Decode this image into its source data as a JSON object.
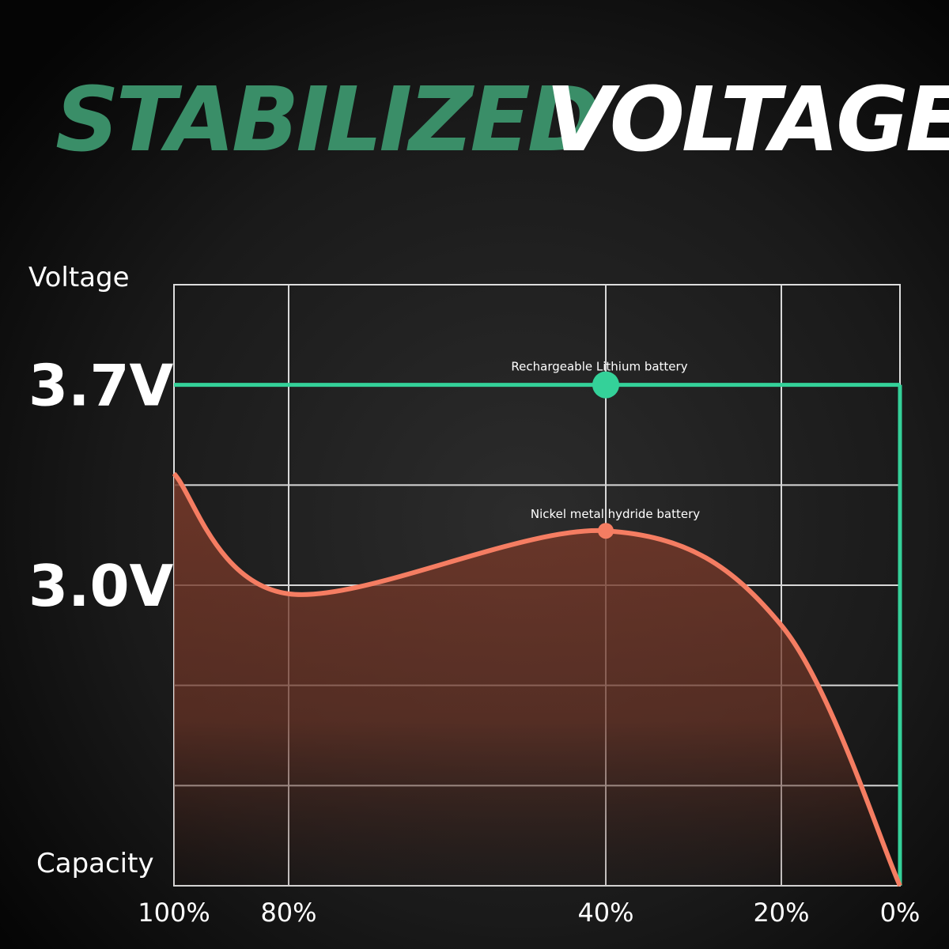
{
  "chart_data": {
    "type": "line",
    "title": "STABILIZED",
    "title_2": "VOLTAGE",
    "y_label": "Voltage",
    "x_label": "Capacity",
    "categories": [
      "100%",
      "80%",
      "40%",
      "20%",
      "0%"
    ],
    "series": [
      {
        "name": "Rechargeable Lithium battery",
        "color": "#34d199",
        "values": [
          3.7,
          3.7,
          3.7,
          3.7,
          3.7
        ]
      },
      {
        "name": "Nickel metal hydride battery",
        "color": "#f57d62",
        "values": [
          3.39,
          2.97,
          3.19,
          2.86,
          1.95
        ]
      }
    ],
    "ylim": [
      1.95,
      4.05
    ],
    "yticks": [
      {
        "value": 3.7,
        "label": "3.7V"
      },
      {
        "value": 3.0,
        "label": "3.0V"
      }
    ],
    "grid": true
  }
}
